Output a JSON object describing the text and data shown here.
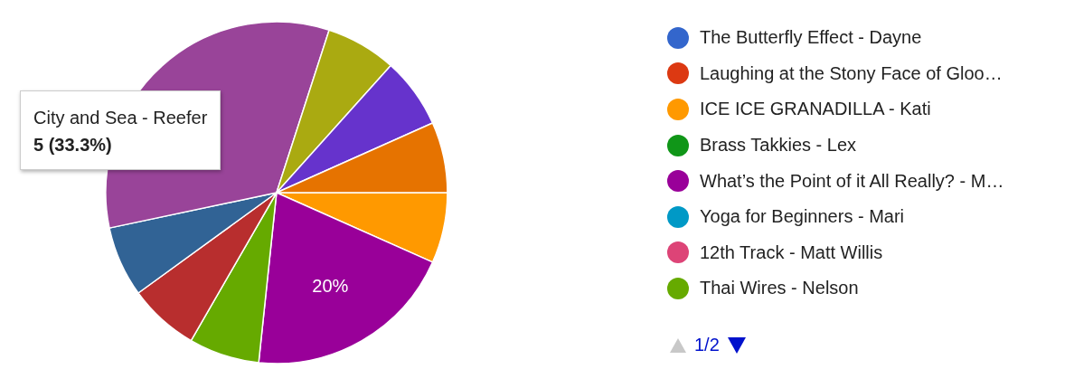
{
  "chart_data": {
    "type": "pie",
    "categories": [
      "The Butterfly Effect - Dayne",
      "Laughing at the Stony Face of Gloo…",
      "ICE ICE GRANADILLA - Kati",
      "Brass Takkies - Lex",
      "What’s the Point of it All Really? - M…",
      "Yoga for Beginners - Mari",
      "12th Track - Matt Willis",
      "Thai Wires - Nelson",
      null,
      null,
      null,
      null,
      null,
      null,
      null
    ],
    "values": [
      0,
      0,
      6.67,
      0,
      20,
      0,
      0,
      6.67,
      6.67,
      6.67,
      33.3,
      0,
      6.67,
      6.67,
      6.68
    ],
    "colors": [
      "#3366cc",
      "#dc3912",
      "#ff9900",
      "#109618",
      "#990099",
      "#0099c6",
      "#dd4477",
      "#66aa00",
      "#b82e2e",
      "#316395",
      "#994499",
      "#22aa99",
      "#aaaa11",
      "#6633cc",
      "#e67300"
    ],
    "value_labels": [
      null,
      null,
      null,
      null,
      "20%",
      null,
      null,
      null,
      null,
      null,
      null,
      null,
      null,
      null,
      null
    ],
    "annotations": [
      "City and Sea - Reefer",
      "5 (33.3%)",
      "1/2"
    ],
    "legend": "right"
  }
}
